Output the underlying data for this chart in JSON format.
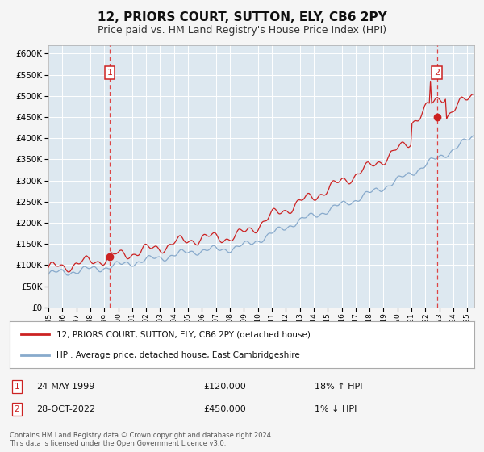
{
  "title": "12, PRIORS COURT, SUTTON, ELY, CB6 2PY",
  "subtitle": "Price paid vs. HM Land Registry's House Price Index (HPI)",
  "title_fontsize": 11,
  "subtitle_fontsize": 9,
  "xlim_start": 1995.0,
  "xlim_end": 2025.5,
  "ylim_bottom": 0,
  "ylim_top": 620000,
  "yticks": [
    0,
    50000,
    100000,
    150000,
    200000,
    250000,
    300000,
    350000,
    400000,
    450000,
    500000,
    550000,
    600000
  ],
  "ytick_labels": [
    "£0",
    "£50K",
    "£100K",
    "£150K",
    "£200K",
    "£250K",
    "£300K",
    "£350K",
    "£400K",
    "£450K",
    "£500K",
    "£550K",
    "£600K"
  ],
  "fig_bg_color": "#f5f5f5",
  "plot_bg_color": "#dde8f0",
  "grid_color": "#ffffff",
  "hpi_color": "#88aacc",
  "price_color": "#cc2222",
  "marker_color": "#cc2222",
  "dashed_line_color": "#dd4444",
  "legend_label_red": "12, PRIORS COURT, SUTTON, ELY, CB6 2PY (detached house)",
  "legend_label_blue": "HPI: Average price, detached house, East Cambridgeshire",
  "sale1_date": 1999.39,
  "sale1_price": 120000,
  "sale1_label": "1",
  "sale1_text": "24-MAY-1999",
  "sale1_amount": "£120,000",
  "sale1_hpi": "18% ↑ HPI",
  "sale2_date": 2022.83,
  "sale2_price": 450000,
  "sale2_label": "2",
  "sale2_text": "28-OCT-2022",
  "sale2_amount": "£450,000",
  "sale2_hpi": "1% ↓ HPI",
  "footer": "Contains HM Land Registry data © Crown copyright and database right 2024.\nThis data is licensed under the Open Government Licence v3.0."
}
